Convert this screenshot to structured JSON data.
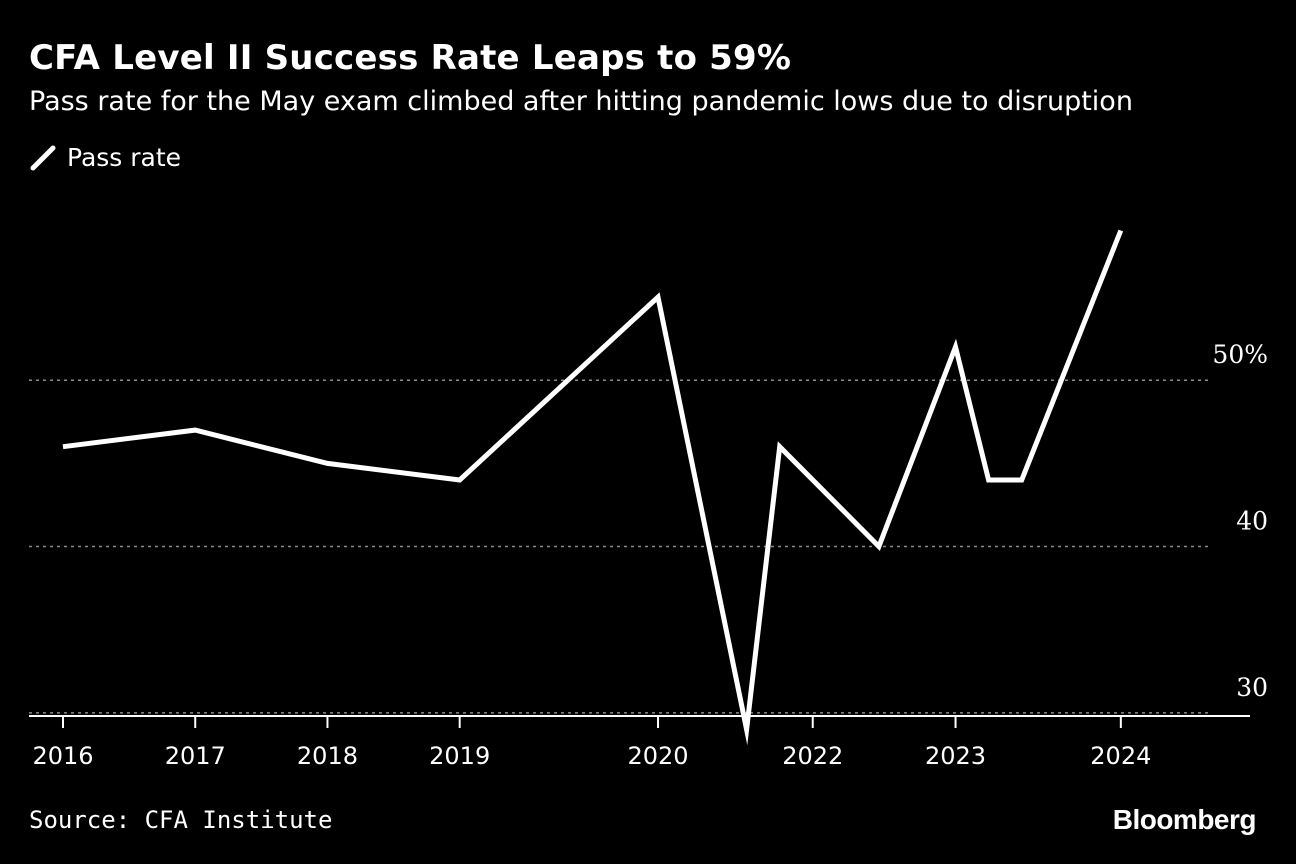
{
  "header": {
    "title": "CFA Level II Success Rate Leaps to 59%",
    "subtitle": "Pass rate for the May exam climbed after hitting pandemic lows due to disruption"
  },
  "legend": {
    "label": "Pass rate",
    "icon": "line-swatch-icon"
  },
  "footer": {
    "source": "Source: CFA Institute",
    "brand": "Bloomberg"
  },
  "colors": {
    "background": "#000000",
    "line": "#ffffff",
    "grid": "#8a8a8a",
    "text": "#ffffff"
  },
  "chart_data": {
    "type": "line",
    "title": "CFA Level II Success Rate Leaps to 59%",
    "subtitle": "Pass rate for the May exam climbed after hitting pandemic lows due to disruption",
    "xlabel": "",
    "ylabel": "",
    "x_domain": [
      2016,
      2024.75
    ],
    "ylim": [
      25,
      63
    ],
    "grid": true,
    "legend_placement": "top-left",
    "y_ticks": [
      {
        "value": 30,
        "label": "30"
      },
      {
        "value": 40,
        "label": "40"
      },
      {
        "value": 50,
        "label": "50%"
      }
    ],
    "x_ticks": [
      {
        "value": 2016.0,
        "label": "2016"
      },
      {
        "value": 2017.0,
        "label": "2017"
      },
      {
        "value": 2018.0,
        "label": "2018"
      },
      {
        "value": 2019.0,
        "label": "2019"
      },
      {
        "value": 2020.5,
        "label": "2020"
      },
      {
        "value": 2021.67,
        "label": "2022"
      },
      {
        "value": 2022.75,
        "label": "2023"
      },
      {
        "value": 2024.0,
        "label": "2024"
      }
    ],
    "series": [
      {
        "name": "Pass rate",
        "points": [
          {
            "x": 2016.0,
            "y": 46
          },
          {
            "x": 2017.0,
            "y": 47
          },
          {
            "x": 2018.0,
            "y": 45
          },
          {
            "x": 2019.0,
            "y": 44
          },
          {
            "x": 2020.5,
            "y": 55
          },
          {
            "x": 2021.17,
            "y": 29
          },
          {
            "x": 2021.42,
            "y": 46
          },
          {
            "x": 2022.17,
            "y": 40
          },
          {
            "x": 2022.75,
            "y": 52
          },
          {
            "x": 2023.0,
            "y": 44
          },
          {
            "x": 2023.25,
            "y": 44
          },
          {
            "x": 2024.0,
            "y": 59
          }
        ]
      }
    ]
  }
}
